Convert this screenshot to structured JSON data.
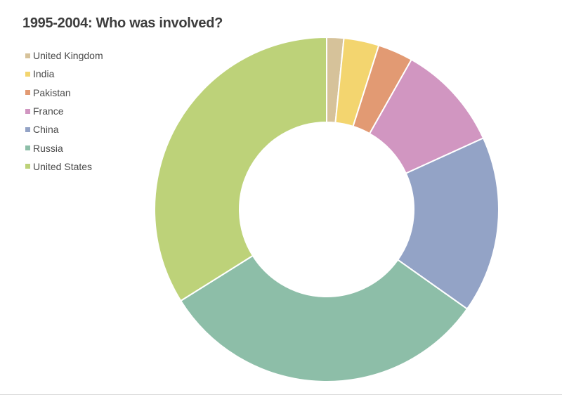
{
  "chart_data": {
    "type": "pie",
    "variant": "donut",
    "title": "1995-2004: Who was involved?",
    "legend_position": "top-left",
    "series": [
      {
        "name": "United Kingdom",
        "value": 1.6,
        "color": "#d6c29a"
      },
      {
        "name": "India",
        "value": 3.3,
        "color": "#f3d56f"
      },
      {
        "name": "Pakistan",
        "value": 3.3,
        "color": "#e29a73"
      },
      {
        "name": "France",
        "value": 10.0,
        "color": "#d196c1"
      },
      {
        "name": "China",
        "value": 16.6,
        "color": "#93a3c6"
      },
      {
        "name": "Russia",
        "value": 31.3,
        "color": "#8dbea8"
      },
      {
        "name": "United States",
        "value": 33.9,
        "color": "#bdd279"
      }
    ]
  }
}
